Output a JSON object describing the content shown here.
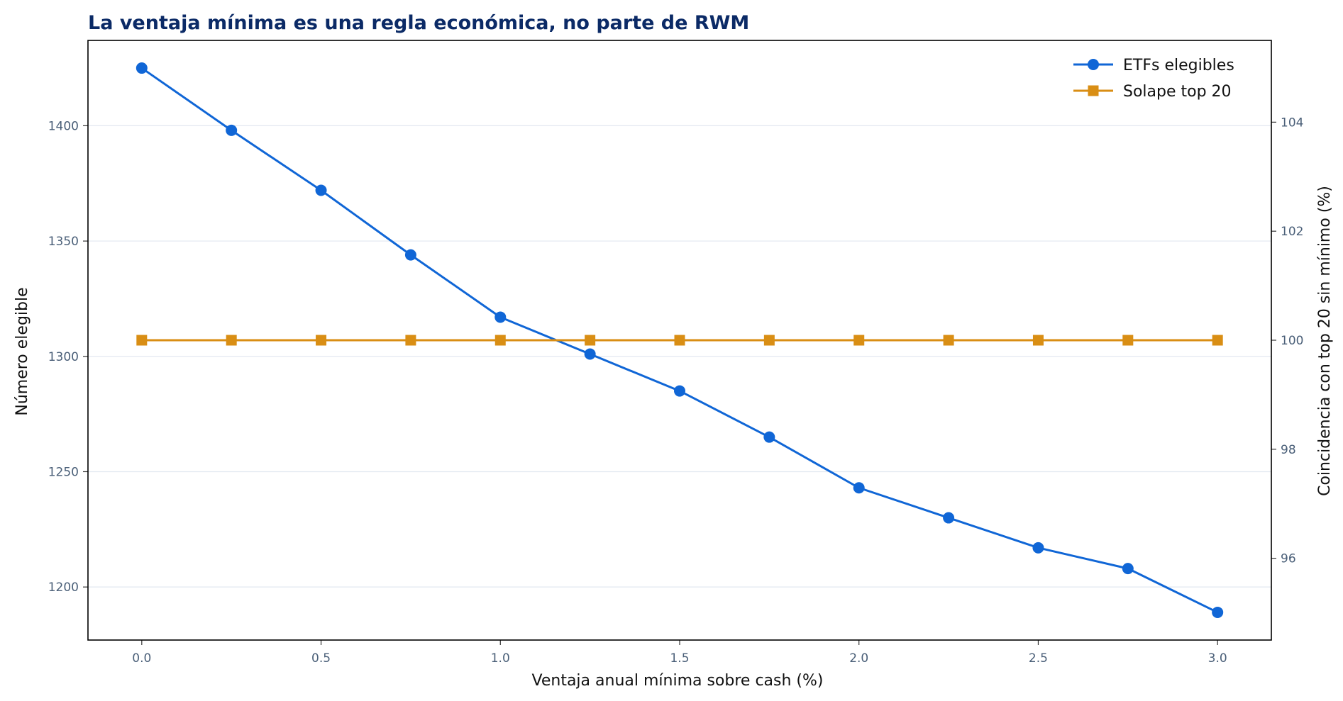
{
  "chart_data": {
    "type": "line",
    "title": "La ventaja mínima es una regla económica, no parte de RWM",
    "xlabel": "Ventaja anual mínima sobre cash (%)",
    "ylabel": "Número elegible",
    "y2label": "Coincidencia con top 20 sin mínimo (%)",
    "x": [
      0.0,
      0.25,
      0.5,
      0.75,
      1.0,
      1.25,
      1.5,
      1.75,
      2.0,
      2.25,
      2.5,
      2.75,
      3.0
    ],
    "xlim": [
      -0.15,
      3.15
    ],
    "ylim": [
      1177,
      1437
    ],
    "y2lim": [
      94.5,
      105.5
    ],
    "xticks": [
      "0.0",
      "0.5",
      "1.0",
      "1.5",
      "2.0",
      "2.5",
      "3.0"
    ],
    "yticks": [
      "1200",
      "1250",
      "1300",
      "1350",
      "1400"
    ],
    "y2ticks": [
      "96",
      "98",
      "100",
      "102",
      "104"
    ],
    "grid": "horizontal",
    "legend_position": "top-right",
    "series": [
      {
        "name": "ETFs elegibles",
        "axis": "left",
        "color": "#1066d6",
        "marker": "circle",
        "values": [
          1425,
          1398,
          1372,
          1344,
          1317,
          1301,
          1285,
          1265,
          1243,
          1230,
          1217,
          1208,
          1189
        ]
      },
      {
        "name": "Solape top 20",
        "axis": "right",
        "color": "#d98e14",
        "marker": "square",
        "values": [
          100,
          100,
          100,
          100,
          100,
          100,
          100,
          100,
          100,
          100,
          100,
          100,
          100
        ]
      }
    ]
  }
}
